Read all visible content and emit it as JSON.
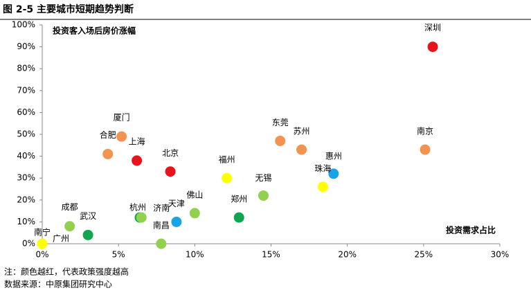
{
  "chart_data": {
    "type": "scatter",
    "title": "图 2-5 主要城市短期趋势判断",
    "y_label": "投资客入场后房价涨幅",
    "x_label": "投资需求占比",
    "notes": [
      "注：颜色越红，代表政策强度越高",
      "数据来源：中原集团研究中心"
    ],
    "point_labels": [
      "深圳",
      "南京",
      "惠州",
      "珠海",
      "苏州",
      "东莞",
      "无锡",
      "郑州",
      "福州",
      "佛山",
      "天津",
      "北京",
      "南昌",
      "杭州",
      "济南",
      "上海",
      "厦门",
      "合肥",
      "武汉",
      "成都",
      "南宁",
      "广州"
    ],
    "x": [
      25.6,
      25.1,
      19.1,
      18.4,
      17.0,
      15.6,
      14.5,
      12.9,
      12.1,
      10.0,
      8.8,
      8.4,
      7.8,
      6.4,
      6.5,
      6.2,
      5.2,
      4.3,
      3.0,
      1.8,
      0,
      0
    ],
    "values": [
      90,
      43,
      32,
      26,
      43,
      47,
      22,
      12,
      30,
      14,
      10,
      33,
      0,
      12,
      12,
      38,
      49,
      41,
      4,
      8,
      0,
      0
    ],
    "colors": [
      "#e8141b",
      "#f2934f",
      "#1aa3e6",
      "#ffff00",
      "#f2934f",
      "#f2934f",
      "#92d050",
      "#12a550",
      "#ffff00",
      "#92d050",
      "#1aa3e6",
      "#e8141b",
      "#92d050",
      "#12a550",
      "#92d050",
      "#e8141b",
      "#f2934f",
      "#f2934f",
      "#12a550",
      "#92d050",
      "#ffff00",
      "#ffff00"
    ],
    "xlim": [
      0,
      30
    ],
    "ylim": [
      0,
      100
    ],
    "xticks": [
      {
        "value": 0,
        "label": "0%"
      },
      {
        "value": 5,
        "label": "5%"
      },
      {
        "value": 10,
        "label": "10%"
      },
      {
        "value": 15,
        "label": "15%"
      },
      {
        "value": 20,
        "label": "20%"
      },
      {
        "value": 25,
        "label": "25%"
      },
      {
        "value": 30,
        "label": "30%"
      }
    ],
    "yticks": [
      {
        "value": 0,
        "label": "0%"
      },
      {
        "value": 10,
        "label": "10%"
      },
      {
        "value": 20,
        "label": "20%"
      },
      {
        "value": 30,
        "label": "30%"
      },
      {
        "value": 40,
        "label": "40%"
      },
      {
        "value": 50,
        "label": "50%"
      },
      {
        "value": 60,
        "label": "60%"
      },
      {
        "value": 70,
        "label": "70%"
      },
      {
        "value": 80,
        "label": "80%"
      },
      {
        "value": 90,
        "label": "90%"
      },
      {
        "value": 100,
        "label": "100%"
      }
    ]
  }
}
